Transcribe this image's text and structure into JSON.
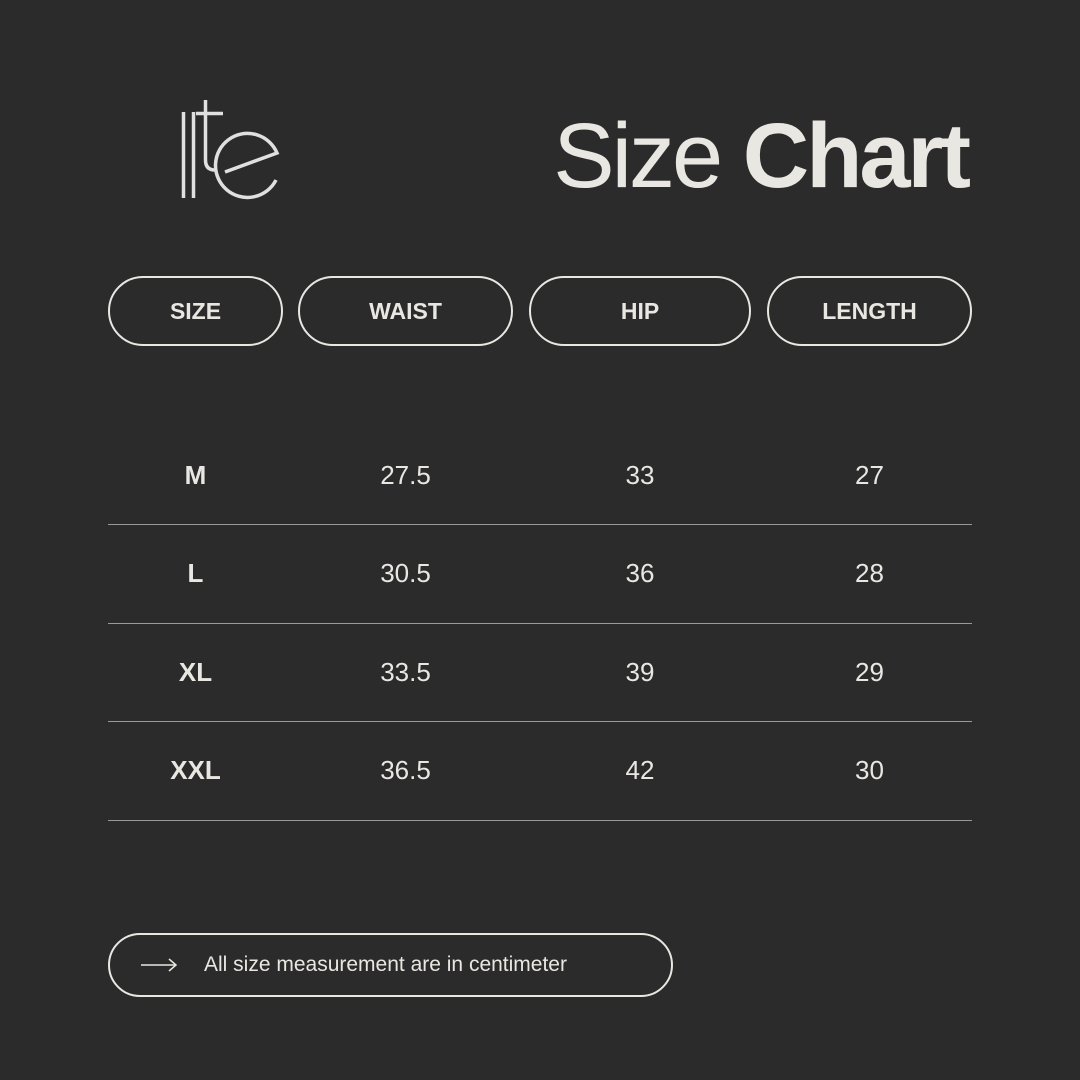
{
  "brand": {
    "logo_text": "lite"
  },
  "title": {
    "light": "Size",
    "bold": "Chart"
  },
  "columns": [
    "SIZE",
    "WAIST",
    "HIP",
    "LENGTH"
  ],
  "rows": [
    [
      "M",
      "27.5",
      "33",
      "27"
    ],
    [
      "L",
      "30.5",
      "36",
      "28"
    ],
    [
      "XL",
      "33.5",
      "39",
      "29"
    ],
    [
      "XXL",
      "36.5",
      "42",
      "30"
    ]
  ],
  "note": {
    "icon": "arrow-right-icon",
    "text": "All size measurement are in centimeter"
  },
  "colors": {
    "background": "#2b2b2b",
    "foreground": "#e9e7e2"
  }
}
